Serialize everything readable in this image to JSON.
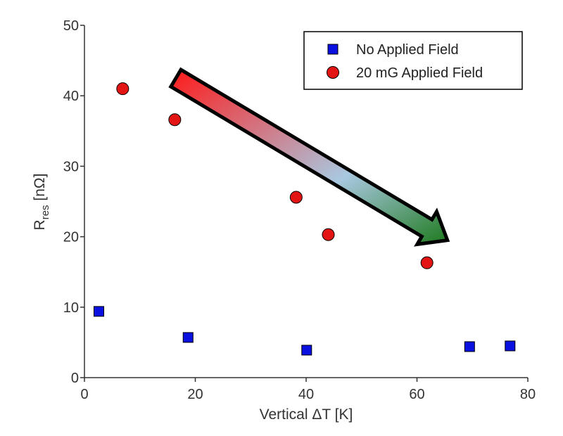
{
  "chart_data": {
    "type": "scatter",
    "xlabel": "Vertical ΔT [K]",
    "ylabel_main": "R",
    "ylabel_sub": "res",
    "ylabel_unit": " [nΩ]",
    "xlim": [
      0,
      80
    ],
    "ylim": [
      0,
      50
    ],
    "x_ticks": [
      0,
      20,
      40,
      60,
      80
    ],
    "y_ticks": [
      0,
      10,
      20,
      30,
      40,
      50
    ],
    "grid": false,
    "legend_position": "top-right",
    "series": [
      {
        "name": "No Applied Field",
        "marker": "square",
        "color": "#0a10e0",
        "points": [
          {
            "x": 2.6,
            "y": 9.4
          },
          {
            "x": 18.7,
            "y": 5.7
          },
          {
            "x": 40.1,
            "y": 3.9
          },
          {
            "x": 69.5,
            "y": 4.4
          },
          {
            "x": 76.8,
            "y": 4.5
          }
        ]
      },
      {
        "name": "20 mG Applied Field",
        "marker": "circle",
        "color": "#e31414",
        "points": [
          {
            "x": 6.9,
            "y": 41.0
          },
          {
            "x": 16.3,
            "y": 36.6
          },
          {
            "x": 38.2,
            "y": 25.6
          },
          {
            "x": 44.0,
            "y": 20.3
          },
          {
            "x": 61.8,
            "y": 16.3
          }
        ]
      }
    ],
    "annotation": {
      "shape": "gradient-arrow",
      "from": {
        "x": 16.5,
        "y": 42.5
      },
      "to": {
        "x": 65.5,
        "y": 19.5
      },
      "colors": [
        "#ff1a1a",
        "#a9c8e0",
        "#1e7a1e"
      ]
    }
  }
}
